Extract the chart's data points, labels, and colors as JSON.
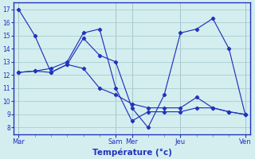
{
  "title": "Température (°c)",
  "background_color": "#d4eef0",
  "grid_color": "#a8ccd0",
  "line_color": "#2233bb",
  "x_labels": [
    "Mar",
    "Sam",
    "Mer",
    "Jeu",
    "Ven"
  ],
  "ylim": [
    7.5,
    17.5
  ],
  "yticks": [
    8,
    9,
    10,
    11,
    12,
    13,
    14,
    15,
    16,
    17
  ],
  "series1_x": [
    0,
    1,
    2,
    3,
    4,
    5,
    6,
    7,
    8,
    9,
    10,
    11,
    12,
    13,
    14
  ],
  "series1_y": [
    17.0,
    15.0,
    12.2,
    12.8,
    14.8,
    13.5,
    13.0,
    9.5,
    8.0,
    10.5,
    15.2,
    15.5,
    16.3,
    14.0,
    9.0
  ],
  "series2_x": [
    0,
    1,
    2,
    3,
    4,
    5,
    6,
    7,
    8,
    9,
    10,
    11,
    12,
    13,
    14
  ],
  "series2_y": [
    12.2,
    12.3,
    12.2,
    12.8,
    12.5,
    11.0,
    10.5,
    9.8,
    9.5,
    9.5,
    9.5,
    10.3,
    9.5,
    9.2,
    9.0
  ],
  "series3_x": [
    0,
    1,
    2,
    3,
    4,
    5,
    6,
    7,
    8,
    9,
    10,
    11,
    12,
    13,
    14
  ],
  "series3_y": [
    12.2,
    12.3,
    12.5,
    13.0,
    15.2,
    15.5,
    11.0,
    8.5,
    9.2,
    9.2,
    9.2,
    9.5,
    9.5,
    9.2,
    9.0
  ],
  "x_day_ticks": [
    0,
    6,
    7,
    10,
    14
  ],
  "x_minor_positions": [
    1,
    2,
    3,
    4,
    5,
    6,
    7,
    8,
    9,
    10,
    11,
    12,
    13
  ],
  "xlim": [
    -0.3,
    14.3
  ]
}
